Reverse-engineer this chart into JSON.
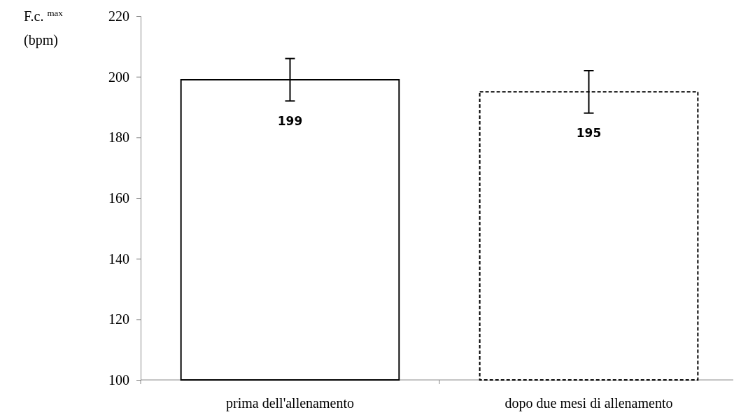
{
  "chart_data": {
    "type": "bar",
    "ylabel": "F.c. $^{max}$\n(bpm)",
    "categories": [
      "prima dell'allenamento",
      "dopo due mesi di allenamento"
    ],
    "series": [
      {
        "color": "#ffffff",
        "values": [
          199,
          null
        ],
        "errors": [
          7,
          null
        ],
        "line_style": "solid"
      },
      {
        "color": "#ffffff",
        "values": [
          null,
          195
        ],
        "errors": [
          null,
          7
        ],
        "line_style": "dashed"
      }
    ],
    "ylim": [
      100,
      220
    ],
    "yticks": [
      100,
      120,
      140,
      160,
      180,
      200,
      220
    ],
    "data_labels": true,
    "grid": false
  }
}
